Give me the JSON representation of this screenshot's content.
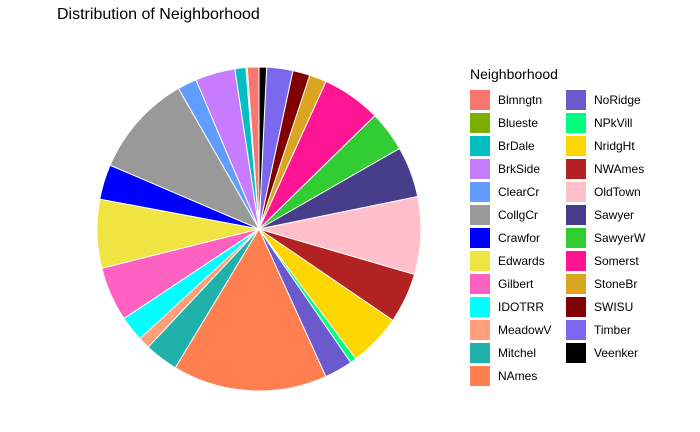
{
  "chart_data": {
    "type": "pie",
    "title": "Distribution of Neighborhood",
    "legend_title": "Neighborhood",
    "legend_position": "right",
    "categories": [
      "Blmngtn",
      "Blueste",
      "BrDale",
      "BrkSide",
      "ClearCr",
      "CollgCr",
      "Crawfor",
      "Edwards",
      "Gilbert",
      "IDOTRR",
      "MeadowV",
      "Mitchel",
      "NAmes",
      "NoRidge",
      "NPkVill",
      "NridgHt",
      "NWAmes",
      "OldTown",
      "Sawyer",
      "SawyerW",
      "Somerst",
      "StoneBr",
      "SWISU",
      "Timber",
      "Veenker"
    ],
    "values": [
      17,
      2,
      16,
      58,
      28,
      150,
      51,
      100,
      79,
      37,
      17,
      49,
      225,
      41,
      9,
      77,
      73,
      113,
      74,
      59,
      86,
      25,
      25,
      38,
      11
    ],
    "colors": [
      "#F8766D",
      "#7CAE00",
      "#00BFC4",
      "#C77CFF",
      "#619CFF",
      "#999999",
      "#0000FF",
      "#F0E442",
      "#FF61C3",
      "#00FFFF",
      "#FFA07A",
      "#20B2AA",
      "#FF7F50",
      "#6A5ACD",
      "#00FF7F",
      "#FFD700",
      "#B22222",
      "#FFC0CB",
      "#483D8B",
      "#32CD32",
      "#FF1493",
      "#DAA520",
      "#800000",
      "#7B68EE",
      "#000000"
    ]
  }
}
